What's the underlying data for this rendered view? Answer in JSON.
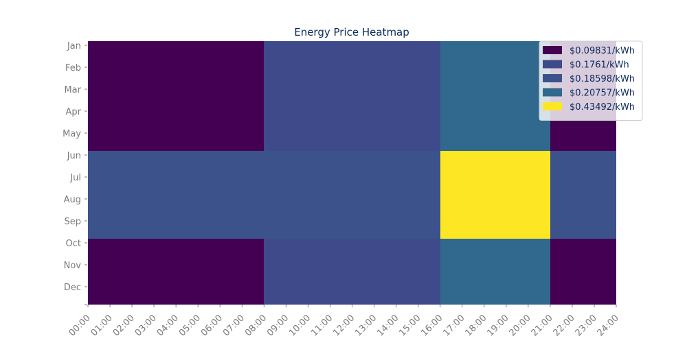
{
  "chart_data": {
    "type": "heatmap",
    "title": "Energy Price Heatmap",
    "xlabel": "",
    "ylabel": "",
    "x_tick_labels": [
      "00:00",
      "01:00",
      "02:00",
      "03:00",
      "04:00",
      "05:00",
      "06:00",
      "07:00",
      "08:00",
      "09:00",
      "10:00",
      "11:00",
      "12:00",
      "13:00",
      "14:00",
      "15:00",
      "16:00",
      "17:00",
      "18:00",
      "19:00",
      "20:00",
      "21:00",
      "22:00",
      "23:00",
      "24:00"
    ],
    "y_tick_labels": [
      "Jan",
      "Feb",
      "Mar",
      "Apr",
      "May",
      "Jun",
      "Jul",
      "Aug",
      "Sep",
      "Oct",
      "Nov",
      "Dec"
    ],
    "legend_placement": "top-right",
    "grid": false,
    "tiers": [
      {
        "label": "$0.09831/kWh",
        "color": "#440154"
      },
      {
        "label": "$0.1761/kWh",
        "color": "#3e4a89"
      },
      {
        "label": "$0.18598/kWh",
        "color": "#3b528b"
      },
      {
        "label": "$0.20757/kWh",
        "color": "#31688e"
      },
      {
        "label": "$0.43492/kWh",
        "color": "#fde725"
      }
    ],
    "blocks": [
      {
        "hours": [
          0,
          8
        ],
        "months": [
          "Jan",
          "Feb",
          "Mar",
          "Apr",
          "May"
        ],
        "price": "$0.09831/kWh"
      },
      {
        "hours": [
          8,
          16
        ],
        "months": [
          "Jan",
          "Feb",
          "Mar",
          "Apr",
          "May"
        ],
        "price": "$0.1761/kWh"
      },
      {
        "hours": [
          16,
          21
        ],
        "months": [
          "Jan",
          "Feb",
          "Mar",
          "Apr",
          "May"
        ],
        "price": "$0.20757/kWh"
      },
      {
        "hours": [
          21,
          24
        ],
        "months": [
          "Jan",
          "Feb",
          "Mar",
          "Apr",
          "May"
        ],
        "price": "$0.09831/kWh"
      },
      {
        "hours": [
          0,
          16
        ],
        "months": [
          "Jun",
          "Jul",
          "Aug",
          "Sep"
        ],
        "price": "$0.18598/kWh"
      },
      {
        "hours": [
          16,
          21
        ],
        "months": [
          "Jun",
          "Jul",
          "Aug",
          "Sep"
        ],
        "price": "$0.43492/kWh"
      },
      {
        "hours": [
          21,
          24
        ],
        "months": [
          "Jun",
          "Jul",
          "Aug",
          "Sep"
        ],
        "price": "$0.18598/kWh"
      },
      {
        "hours": [
          0,
          8
        ],
        "months": [
          "Oct",
          "Nov",
          "Dec"
        ],
        "price": "$0.09831/kWh"
      },
      {
        "hours": [
          8,
          16
        ],
        "months": [
          "Oct",
          "Nov",
          "Dec"
        ],
        "price": "$0.1761/kWh"
      },
      {
        "hours": [
          16,
          21
        ],
        "months": [
          "Oct",
          "Nov",
          "Dec"
        ],
        "price": "$0.20757/kWh"
      },
      {
        "hours": [
          21,
          24
        ],
        "months": [
          "Oct",
          "Nov",
          "Dec"
        ],
        "price": "$0.09831/kWh"
      }
    ]
  }
}
